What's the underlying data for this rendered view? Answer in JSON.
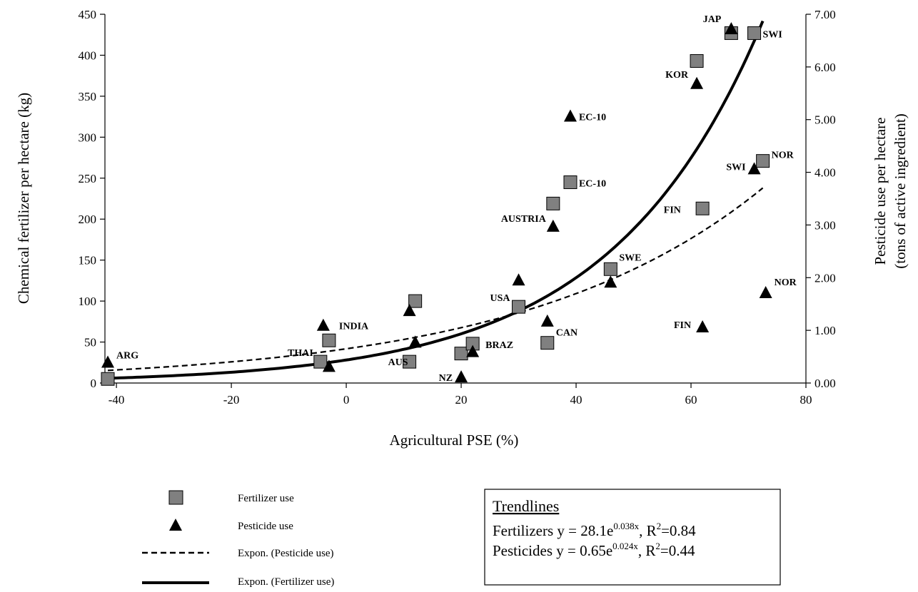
{
  "chart_data": {
    "type": "scatter",
    "xlabel": "Agricultural PSE (%)",
    "ylabel": "Chemical fertilizer per hectare (kg)",
    "y2label_line1": "Pesticide use per hectare",
    "y2label_line2": "(tons of active ingredient)",
    "xlim": [
      -42,
      80
    ],
    "ylim": [
      0,
      450
    ],
    "y2lim": [
      0,
      7
    ],
    "x_ticks": [
      -40,
      -20,
      0,
      20,
      40,
      60,
      80
    ],
    "x_tick_labels": [
      "-40",
      "-20",
      "0",
      "20",
      "40",
      "60",
      "80"
    ],
    "y_ticks": [
      0,
      50,
      100,
      150,
      200,
      250,
      300,
      350,
      400,
      450
    ],
    "y_tick_labels": [
      "0",
      "50",
      "100",
      "150",
      "200",
      "250",
      "300",
      "350",
      "400",
      "450"
    ],
    "y2_ticks": [
      0,
      1,
      2,
      3,
      4,
      5,
      6,
      7
    ],
    "y2_tick_labels": [
      "0.00",
      "1.00",
      "2.00",
      "3.00",
      "4.00",
      "5.00",
      "6.00",
      "7.00"
    ],
    "series": [
      {
        "name": "Fertilizer use",
        "marker": "square",
        "axis": "left",
        "color": "#808080",
        "points": [
          {
            "x": -41.5,
            "y": 5,
            "label": ""
          },
          {
            "x": -4.5,
            "y": 26,
            "label": "THAI"
          },
          {
            "x": -3,
            "y": 52,
            "label": "INDIA"
          },
          {
            "x": 11,
            "y": 26,
            "label": "AUS"
          },
          {
            "x": 12,
            "y": 100,
            "label": ""
          },
          {
            "x": 20,
            "y": 36,
            "label": ""
          },
          {
            "x": 22,
            "y": 48,
            "label": "BRAZ"
          },
          {
            "x": 30,
            "y": 93,
            "label": "USA"
          },
          {
            "x": 35,
            "y": 49,
            "label": "CAN"
          },
          {
            "x": 36,
            "y": 219,
            "label": ""
          },
          {
            "x": 39,
            "y": 245,
            "label": "EC-10"
          },
          {
            "x": 46,
            "y": 139,
            "label": "SWE"
          },
          {
            "x": 61,
            "y": 393,
            "label": ""
          },
          {
            "x": 62,
            "y": 213,
            "label": ""
          },
          {
            "x": 67,
            "y": 427,
            "label": ""
          },
          {
            "x": 71,
            "y": 427,
            "label": "SWI"
          },
          {
            "x": 72.5,
            "y": 271,
            "label": "NOR"
          }
        ]
      },
      {
        "name": "Pesticide use",
        "marker": "triangle",
        "axis": "right",
        "color": "#000000",
        "points": [
          {
            "x": -41.5,
            "y": 0.4,
            "label": "ARG"
          },
          {
            "x": -4,
            "y": 1.1,
            "label": ""
          },
          {
            "x": -3,
            "y": 0.32,
            "label": ""
          },
          {
            "x": 11,
            "y": 1.38,
            "label": ""
          },
          {
            "x": 12,
            "y": 0.78,
            "label": ""
          },
          {
            "x": 20,
            "y": 0.12,
            "label": "NZ"
          },
          {
            "x": 22,
            "y": 0.6,
            "label": ""
          },
          {
            "x": 30,
            "y": 1.96,
            "label": ""
          },
          {
            "x": 35,
            "y": 1.18,
            "label": ""
          },
          {
            "x": 36,
            "y": 2.98,
            "label": "AUSTRIA"
          },
          {
            "x": 39,
            "y": 5.07,
            "label": "EC-10"
          },
          {
            "x": 46,
            "y": 1.92,
            "label": ""
          },
          {
            "x": 61,
            "y": 5.69,
            "label": "KOR"
          },
          {
            "x": 62,
            "y": 1.07,
            "label": "FIN"
          },
          {
            "x": 67,
            "y": 6.73,
            "label": "JAP"
          },
          {
            "x": 71,
            "y": 4.07,
            "label": "SWI"
          },
          {
            "x": 73,
            "y": 1.72,
            "label": "NOR"
          }
        ]
      }
    ],
    "extra_labels": [
      {
        "text": "FIN",
        "x": 57.5,
        "y": 213
      }
    ],
    "trendlines": [
      {
        "name": "Expon. (Fertilizer use)",
        "style": "solid",
        "axis": "left",
        "a": 28.1,
        "b": 0.038,
        "x_from": -41.5,
        "x_to": 72.5
      },
      {
        "name": "Expon. (Pesticide use)",
        "style": "dashed",
        "axis": "right",
        "a": 0.65,
        "b": 0.024,
        "x_from": -41.5,
        "x_to": 72.5
      }
    ],
    "legend_position": "bottom-left",
    "grid": false
  },
  "legend": {
    "items": [
      {
        "label": "Fertilizer use",
        "symbol": "square"
      },
      {
        "label": "Pesticide use",
        "symbol": "triangle"
      },
      {
        "label": "Expon. (Pesticide use)",
        "symbol": "dashed-line"
      },
      {
        "label": "Expon. (Fertilizer use)",
        "symbol": "solid-line"
      }
    ]
  },
  "trend_box": {
    "heading": "Trendlines",
    "fert_prefix": "Fertilizers y = 28.1e",
    "fert_exp": "0.038x",
    "fert_mid": ", R",
    "fert_sq": "2",
    "fert_end": "=0.84",
    "pest_prefix": "Pesticides y = 0.65e",
    "pest_exp": "0.024x",
    "pest_mid": ", R",
    "pest_sq": "2",
    "pest_end": "=0.44"
  }
}
